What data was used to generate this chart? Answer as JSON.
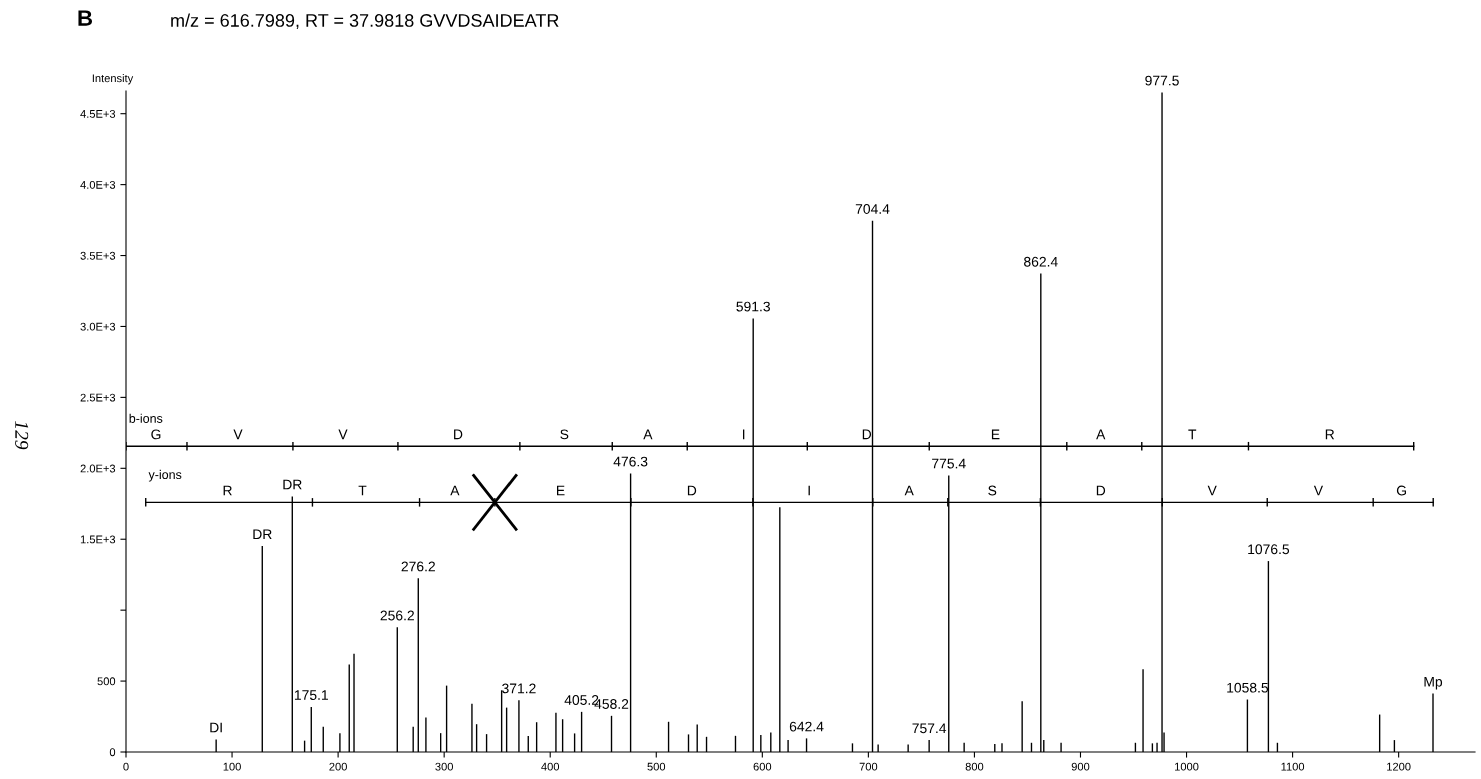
{
  "chart_data": {
    "type": "bar",
    "title": "m/z = 616.7989, RT = 37.9818 GVVDSAIDEATR",
    "ylabel": "Intensity",
    "xlim": [
      0,
      1272
    ],
    "ylim": [
      0,
      4660
    ],
    "xticks": [
      0,
      100,
      200,
      300,
      400,
      500,
      600,
      700,
      800,
      900,
      1000,
      1100,
      1200
    ],
    "yticks": [
      0,
      500,
      {
        "value": 1000,
        "label": null
      },
      {
        "value": 1500,
        "label": "1.5E+3"
      },
      {
        "value": 2000,
        "label": "2.0E+3"
      },
      {
        "value": 2500,
        "label": "2.5E+3"
      },
      {
        "value": 3000,
        "label": "3.0E+3"
      },
      {
        "value": 3500,
        "label": "3.5E+3"
      },
      {
        "value": 4000,
        "label": "4.0E+3"
      },
      {
        "value": 4500,
        "label": "4.5E+3"
      }
    ],
    "grid": false,
    "series": [
      {
        "color": "#000000",
        "x": [
          85,
          128.5,
          156.8,
          168.4,
          174.7,
          186,
          201.7,
          210.5,
          215,
          255.8,
          270.8,
          275.6,
          282.8,
          296.7,
          302.3,
          326.2,
          330.6,
          340,
          354.2,
          358.9,
          370.5,
          379.3,
          387.2,
          405.4,
          411.7,
          423,
          429.6,
          457.8,
          475.8,
          511.6,
          530.4,
          538.6,
          547.4,
          574.7,
          591.4,
          598.6,
          608,
          616.5,
          624.3,
          641.7,
          685,
          703.9,
          709.2,
          737.5,
          757.3,
          775.8,
          790.3,
          819.2,
          826,
          845,
          853.8,
          862.6,
          865.4,
          881.7,
          951.8,
          959,
          967.8,
          972.2,
          976.9,
          978.8,
          1057.4,
          1077.2,
          1085.7,
          1182.1,
          1196,
          1232.4
        ],
        "values": [
          89,
          1452,
          1802,
          80,
          318,
          178,
          133,
          617,
          692,
          879,
          178,
          1225,
          243,
          133,
          468,
          341,
          196,
          126,
          435,
          313,
          365,
          112,
          210,
          276,
          231,
          131,
          283,
          255,
          1964,
          213,
          124,
          194,
          107,
          114,
          3057,
          119,
          138,
          1725,
          84,
          96,
          61,
          3745,
          53,
          53,
          84,
          1950,
          65,
          56,
          61,
          358,
          65,
          3373,
          84,
          65,
          65,
          584,
          61,
          65,
          4650,
          138,
          370,
          1346,
          65,
          264,
          84,
          412
        ]
      },
      {
        "type": "line",
        "name": "b-ions",
        "color": "#000000",
        "x": [
          0,
          57.5,
          157.4,
          256.4,
          371.4,
          458.5,
          529.2,
          642.4,
          757.4,
          887.1,
          957.8,
          1058.4,
          1214.2
        ],
        "values": [
          2156,
          2156,
          2156,
          2156,
          2156,
          2156,
          2156,
          2156,
          2156,
          2156,
          2156,
          2156,
          2156
        ],
        "errors": [
          30,
          30,
          30,
          30,
          30,
          30,
          30,
          30,
          30,
          30,
          30,
          30,
          30
        ]
      },
      {
        "type": "line",
        "name": "y-ions",
        "color": "#000000",
        "x": [
          18.6,
          175.8,
          276.8,
          347.8,
          476.1,
          591.1,
          704.2,
          774.9,
          862.2,
          977.1,
          1076.1,
          1176,
          1232.6
        ],
        "values": [
          1760,
          1760,
          1760,
          1760,
          1760,
          1760,
          1760,
          1760,
          1760,
          1760,
          1760,
          1760,
          1760
        ],
        "errors": [
          30,
          30,
          30,
          30,
          30,
          30,
          30,
          30,
          30,
          30,
          30,
          30,
          30
        ]
      }
    ],
    "annotations": [
      "B",
      "129",
      {
        "text": "DI",
        "x": 85,
        "y": 89
      },
      {
        "text": "DR",
        "x": 128.5,
        "y": 1452
      },
      {
        "text": "DR",
        "x": 156.8,
        "y": 1802
      },
      {
        "text": "175.1",
        "x": 174.7,
        "y": 318
      },
      {
        "text": "256.2",
        "x": 255.8,
        "y": 879
      },
      {
        "text": "276.2",
        "x": 275.6,
        "y": 1225
      },
      {
        "text": "371.2",
        "x": 370.5,
        "y": 365
      },
      {
        "text": "405.2",
        "x": 429.6,
        "y": 283
      },
      {
        "text": "458.2",
        "x": 457.8,
        "y": 255
      },
      {
        "text": "476.3",
        "x": 475.8,
        "y": 1964
      },
      {
        "text": "591.3",
        "x": 591.4,
        "y": 3057
      },
      {
        "text": "642.4",
        "x": 641.7,
        "y": 96
      },
      {
        "text": "704.4",
        "x": 703.9,
        "y": 3745
      },
      {
        "text": "757.4",
        "x": 757.3,
        "y": 84
      },
      {
        "text": "775.4",
        "x": 775.8,
        "y": 1950
      },
      {
        "text": "862.4",
        "x": 862.6,
        "y": 3373
      },
      {
        "text": "977.5",
        "x": 976.9,
        "y": 4650
      },
      {
        "text": "1058.5",
        "x": 1057.4,
        "y": 370
      },
      {
        "text": "1076.5",
        "x": 1077.2,
        "y": 1346
      },
      {
        "text": "Mp",
        "x": 1232.4,
        "y": 412
      },
      {
        "text": "G",
        "x": 28.3,
        "y": 2156
      },
      {
        "text": "V",
        "x": 105.6,
        "y": 2156
      },
      {
        "text": "V",
        "x": 204.6,
        "y": 2156
      },
      {
        "text": "D",
        "x": 313,
        "y": 2156
      },
      {
        "text": "S",
        "x": 413.3,
        "y": 2156
      },
      {
        "text": "A",
        "x": 492.1,
        "y": 2156
      },
      {
        "text": "I",
        "x": 582.4,
        "y": 2156
      },
      {
        "text": "D",
        "x": 698.4,
        "y": 2156
      },
      {
        "text": "E",
        "x": 819.8,
        "y": 2156
      },
      {
        "text": "A",
        "x": 919.1,
        "y": 2156
      },
      {
        "text": "T",
        "x": 1005.4,
        "y": 2156
      },
      {
        "text": "R",
        "x": 1135,
        "y": 2156
      },
      {
        "text": "R",
        "x": 95.7,
        "y": 1760
      },
      {
        "text": "T",
        "x": 223,
        "y": 1760
      },
      {
        "text": "A",
        "x": 310.1,
        "y": 1760
      },
      {
        "text": "E",
        "x": 409.7,
        "y": 1760
      },
      {
        "text": "D",
        "x": 533.5,
        "y": 1760
      },
      {
        "text": "I",
        "x": 644.2,
        "y": 1760
      },
      {
        "text": "A",
        "x": 738.5,
        "y": 1760
      },
      {
        "text": "S",
        "x": 816.8,
        "y": 1760
      },
      {
        "text": "D",
        "x": 919.1,
        "y": 1760
      },
      {
        "text": "V",
        "x": 1024.2,
        "y": 1760
      },
      {
        "text": "V",
        "x": 1124.4,
        "y": 1760
      },
      {
        "text": "G",
        "x": 1202.8,
        "y": 1760
      }
    ]
  }
}
